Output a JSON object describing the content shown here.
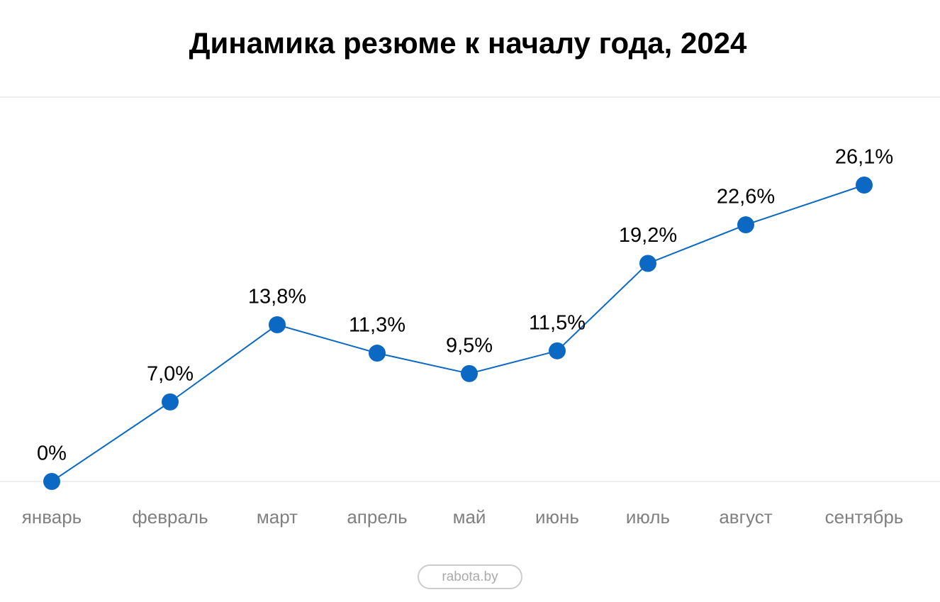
{
  "chart_data": {
    "type": "line",
    "title": "Динамика резюме к началу года, 2024",
    "categories": [
      "январь",
      "февраль",
      "март",
      "апрель",
      "май",
      "июнь",
      "июль",
      "август",
      "сентябрь"
    ],
    "values": [
      0,
      7.0,
      13.8,
      11.3,
      9.5,
      11.5,
      19.2,
      22.6,
      26.1
    ],
    "value_labels": [
      "0%",
      "7,0%",
      "13,8%",
      "11,3%",
      "9,5%",
      "11,5%",
      "19,2%",
      "22,6%",
      "26,1%"
    ],
    "color": "#0b69c4",
    "source": "rabota.by"
  }
}
